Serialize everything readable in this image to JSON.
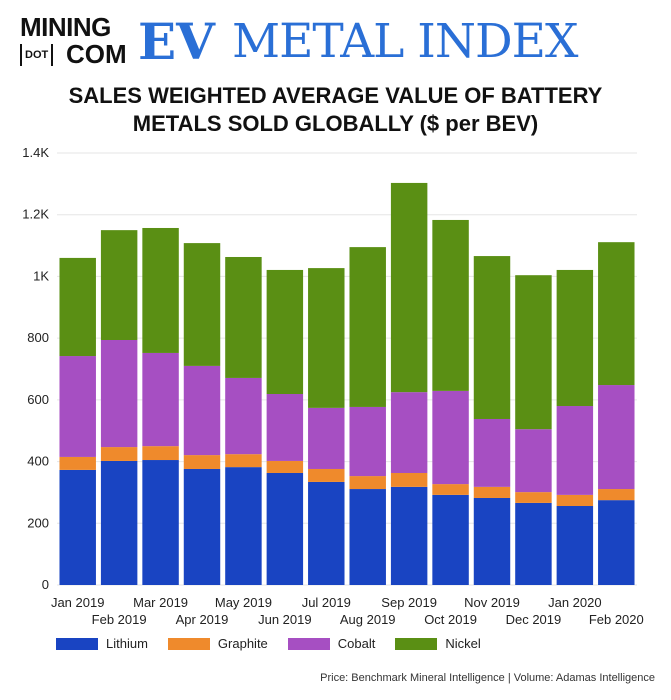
{
  "logo": {
    "mining": "MINING",
    "dot": "DOT",
    "com": "COM",
    "ev": "EV",
    "metal_index": "METAL INDEX"
  },
  "title_line1": "SALES WEIGHTED AVERAGE VALUE OF BATTERY",
  "title_line2": "METALS SOLD GLOBALLY ($ per BEV)",
  "source": "Price: Benchmark Mineral Intelligence | Volume: Adamas Intelligence",
  "chart_data": {
    "type": "bar",
    "stacked": true,
    "categories": [
      "Jan 2019",
      "Feb 2019",
      "Mar 2019",
      "Apr 2019",
      "May 2019",
      "Jun 2019",
      "Jul 2019",
      "Aug 2019",
      "Sep 2019",
      "Oct 2019",
      "Nov 2019",
      "Dec 2019",
      "Jan 2020",
      "Feb 2020"
    ],
    "ylim": [
      0,
      1400
    ],
    "yticks": [
      0,
      200,
      400,
      600,
      800,
      1000,
      1200,
      1400
    ],
    "ytick_labels": [
      "0",
      "200",
      "400",
      "600",
      "800",
      "1K",
      "1.2K",
      "1.4K"
    ],
    "grid": true,
    "legend_placement": "bottom-left",
    "series": [
      {
        "name": "Lithium",
        "color": "#1944c2",
        "values": [
          373,
          402,
          405,
          376,
          382,
          363,
          334,
          311,
          318,
          292,
          282,
          266,
          256,
          275
        ]
      },
      {
        "name": "Graphite",
        "color": "#ef8a2c",
        "values": [
          42,
          45,
          45,
          45,
          42,
          39,
          42,
          42,
          45,
          35,
          36,
          35,
          36,
          36
        ]
      },
      {
        "name": "Cobalt",
        "color": "#a64fc2",
        "values": [
          327,
          347,
          302,
          289,
          247,
          217,
          198,
          224,
          262,
          302,
          220,
          204,
          288,
          337
        ]
      },
      {
        "name": "Nickel",
        "color": "#5a8f14",
        "values": [
          318,
          356,
          405,
          398,
          392,
          402,
          453,
          518,
          678,
          554,
          528,
          499,
          441,
          463
        ]
      }
    ]
  }
}
